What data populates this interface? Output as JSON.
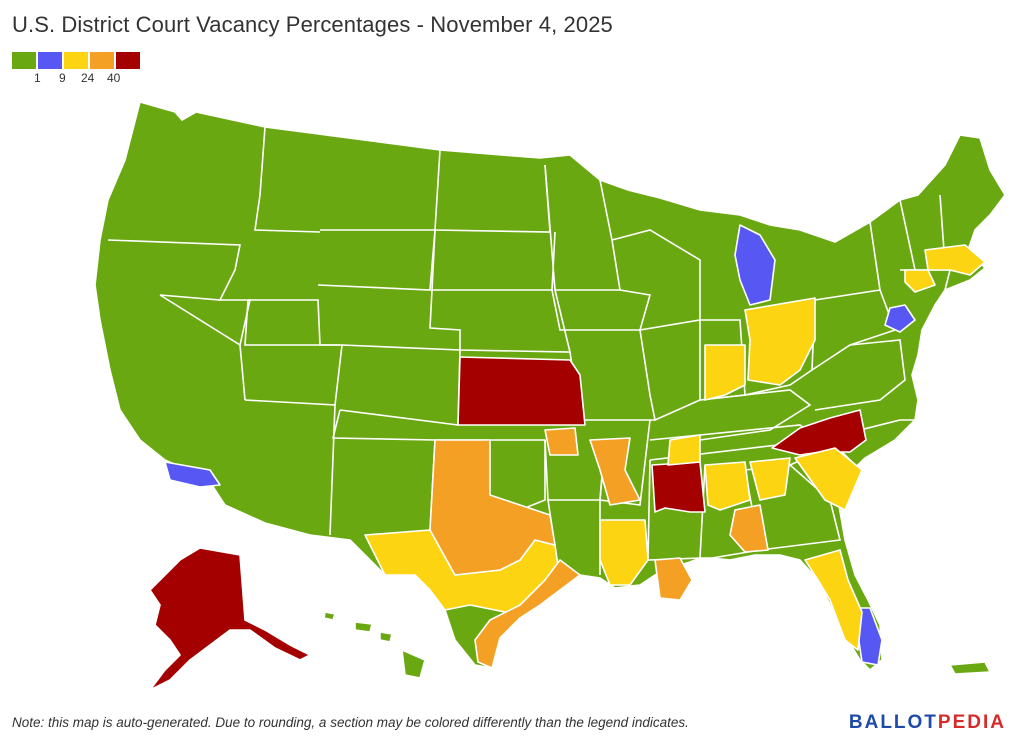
{
  "title": "U.S. District Court Vacancy Percentages - November 4, 2025",
  "legend": {
    "colors": {
      "green": "#6aa812",
      "blue": "#5757f4",
      "yellow": "#fcd412",
      "orange": "#f4a024",
      "red": "#a50000"
    },
    "labels": [
      "1",
      "9",
      "24",
      "40"
    ]
  },
  "note": "Note: this map is auto-generated. Due to rounding, a section may be colored differently than the legend indicates.",
  "brand": {
    "part1": "BALLOT",
    "part2": "PEDIA"
  }
}
